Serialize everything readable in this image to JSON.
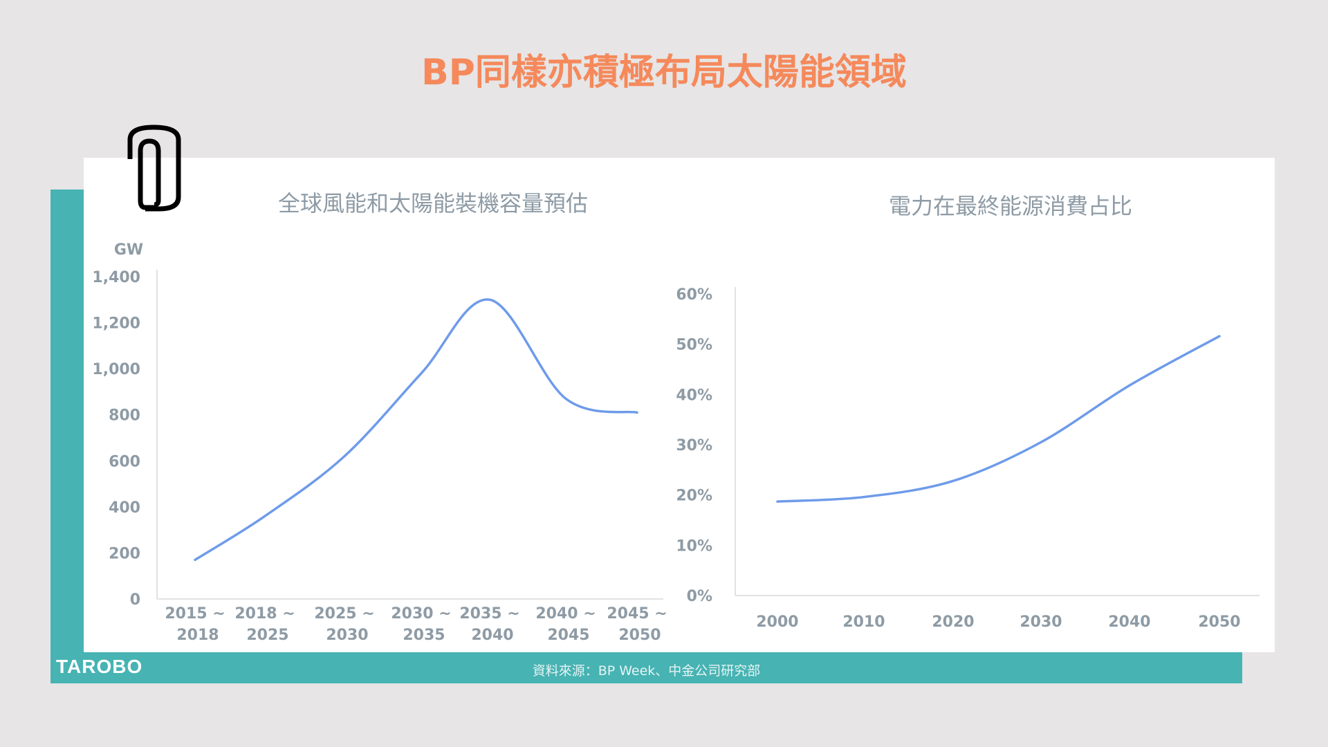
{
  "page_title": "BP同樣亦積極布局太陽能領域",
  "footer": {
    "logo": "TAROBO",
    "source": "資料來源：BP Week、中金公司研究部"
  },
  "colors": {
    "title": "#F5895B",
    "teal": "#47B3B3",
    "line": "#6E9BEA",
    "axis_text": "#8E9BA5"
  },
  "decoration": {
    "icon": "paperclip-icon"
  },
  "chart_data": [
    {
      "type": "line",
      "title": "全球風能和太陽能裝機容量預估",
      "ylabel": "GW",
      "ylim": [
        0,
        1400
      ],
      "yticks": [
        "0",
        "200",
        "400",
        "600",
        "800",
        "1,000",
        "1,200",
        "1,400"
      ],
      "categories": [
        [
          "2015 ~",
          "2018"
        ],
        [
          "2018 ~",
          "2025"
        ],
        [
          "2025 ~",
          "2030"
        ],
        [
          "2030 ~",
          "2035"
        ],
        [
          "2035 ~",
          "2040"
        ],
        [
          "2040 ~",
          "2045"
        ],
        [
          "2045 ~",
          "2050"
        ]
      ],
      "values": [
        170,
        360,
        620,
        980,
        1300,
        870,
        810
      ],
      "smooth": true,
      "grid": false
    },
    {
      "type": "line",
      "title": "電力在最終能源消費占比",
      "ylim": [
        0,
        60
      ],
      "yticks": [
        "0%",
        "10%",
        "20%",
        "30%",
        "40%",
        "50%",
        "60%"
      ],
      "categories": [
        "2000",
        "2010",
        "2020",
        "2030",
        "2040",
        "2050"
      ],
      "values": [
        18.7,
        19.6,
        22.8,
        30.5,
        41.8,
        51.6
      ],
      "smooth": true,
      "grid": false
    }
  ]
}
